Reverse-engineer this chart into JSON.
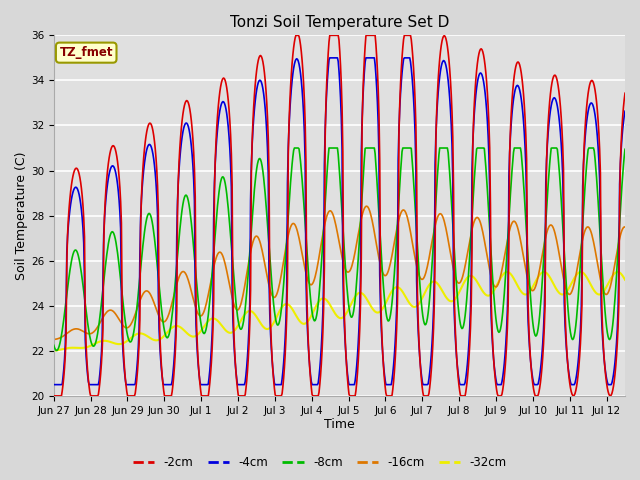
{
  "title": "Tonzi Soil Temperature Set D",
  "xlabel": "Time",
  "ylabel": "Soil Temperature (C)",
  "ylim": [
    20,
    36
  ],
  "yticks": [
    20,
    22,
    24,
    26,
    28,
    30,
    32,
    34,
    36
  ],
  "legend_label": "TZ_fmet",
  "series_colors": {
    "-2cm": "#dd0000",
    "-4cm": "#0000dd",
    "-8cm": "#00bb00",
    "-16cm": "#dd7700",
    "-32cm": "#eeee00"
  },
  "series_labels": [
    "-2cm",
    "-4cm",
    "-8cm",
    "-16cm",
    "-32cm"
  ],
  "xtick_labels": [
    "Jun 27",
    "Jun 28",
    "Jun 29",
    "Jun 30",
    "Jul 1",
    "Jul 2",
    "Jul 3",
    "Jul 4",
    "Jul 5",
    "Jul 6",
    "Jul 7",
    "Jul 8",
    "Jul 9",
    "Jul 10",
    "Jul 11",
    "Jul 12"
  ],
  "background_color": "#d8d8d8",
  "plot_bg_color": "#e0e0e0",
  "grid_color": "#ffffff",
  "legend_box_color": "#ffffcc",
  "legend_text_color": "#880000",
  "legend_border_color": "#999900"
}
